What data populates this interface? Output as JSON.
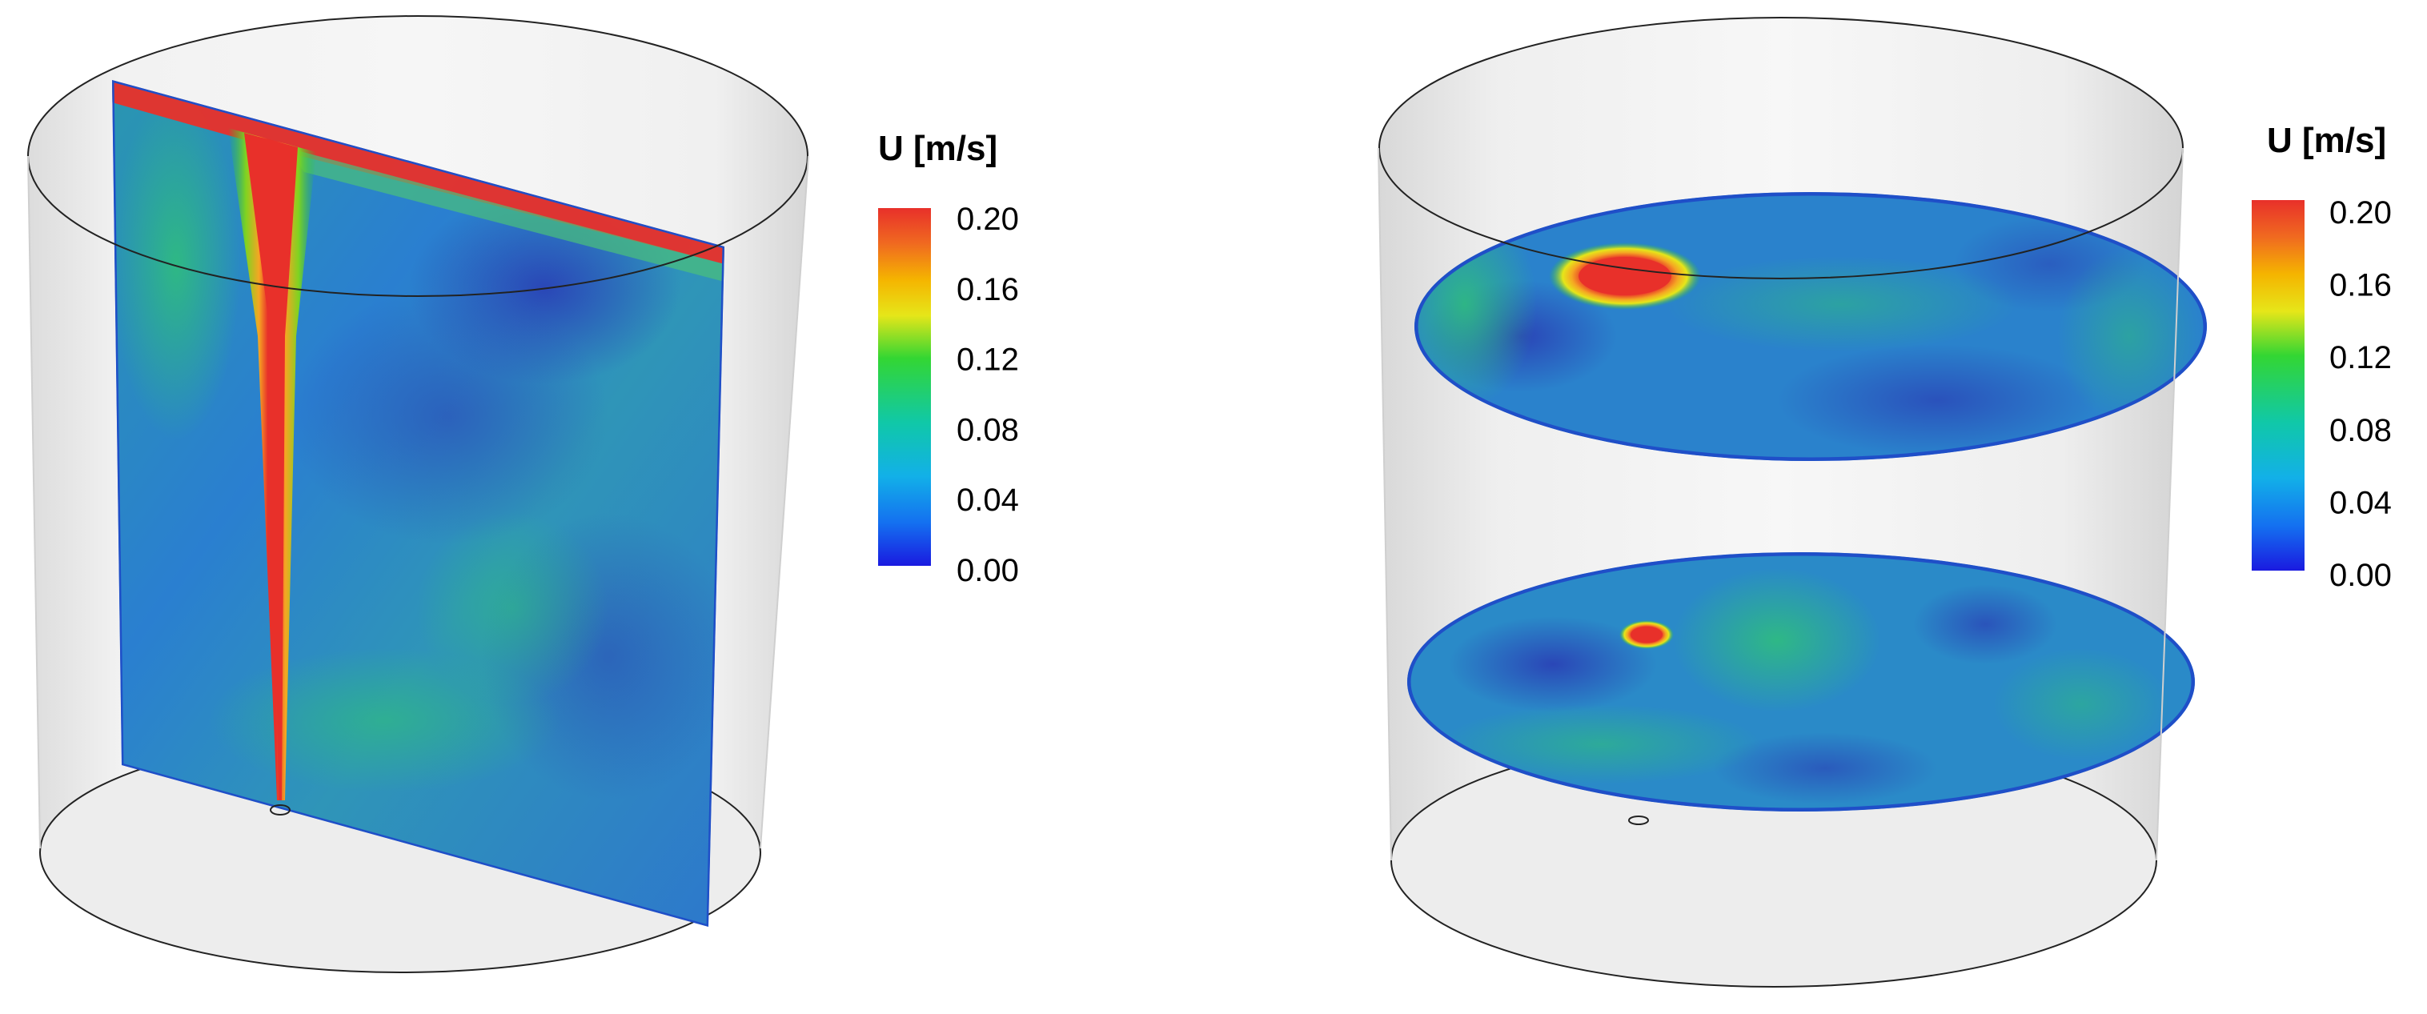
{
  "panels": [
    {
      "id": "vertical-slice",
      "colorbar": {
        "label": "U [m/s]",
        "ticks": [
          "0.20",
          "0.16",
          "0.12",
          "0.08",
          "0.04",
          "0.00"
        ],
        "min": 0.0,
        "max": 0.2
      }
    },
    {
      "id": "horizontal-slices",
      "colorbar": {
        "label": "U [m/s]",
        "ticks": [
          "0.20",
          "0.16",
          "0.12",
          "0.08",
          "0.04",
          "0.00"
        ],
        "min": 0.0,
        "max": 0.2
      }
    }
  ],
  "colors": {
    "max": "#e8302a",
    "high": "#f5a623",
    "mid_high": "#e6e619",
    "mid": "#22c43a",
    "low_mid": "#19c4b8",
    "low": "#1e9ae8",
    "min": "#1a1ae0",
    "field_base": "#2a7fd0",
    "field_dark": "#2448b8",
    "field_green": "#27b48a",
    "cylinder": "#e9e9e9",
    "outline": "#222222"
  }
}
